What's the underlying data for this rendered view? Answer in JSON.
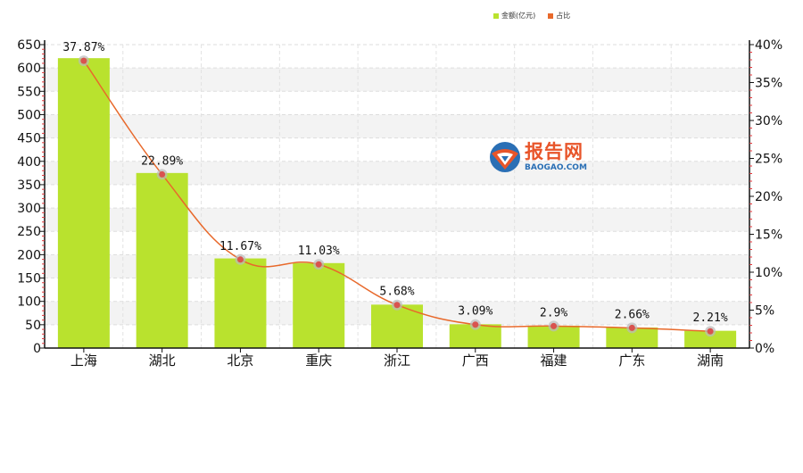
{
  "chart_data": {
    "type": "bar",
    "categories": [
      "上海",
      "湖北",
      "北京",
      "重庆",
      "浙江",
      "广西",
      "福建",
      "广东",
      "湖南"
    ],
    "series": [
      {
        "name": "金额(亿元)",
        "type": "bar",
        "axis": "left",
        "color": "#b9e22e",
        "values": [
          621,
          375,
          192,
          182,
          93,
          51,
          48,
          44,
          37
        ]
      },
      {
        "name": "占比",
        "type": "line",
        "axis": "right",
        "color": "#e8692b",
        "values": [
          37.87,
          22.89,
          11.67,
          11.03,
          5.68,
          3.09,
          2.9,
          2.66,
          2.21
        ],
        "labels": [
          "37.87%",
          "22.89%",
          "11.67%",
          "11.03%",
          "5.68%",
          "3.09%",
          "2.9%",
          "2.66%",
          "2.21%"
        ]
      }
    ],
    "y_left": {
      "min": 0,
      "max": 650,
      "ticks": [
        "0",
        "50",
        "100",
        "150",
        "200",
        "250",
        "300",
        "350",
        "400",
        "450",
        "500",
        "550",
        "600",
        "650"
      ]
    },
    "y_right": {
      "min": 0,
      "max": 40,
      "ticks": [
        "0%",
        "5%",
        "10%",
        "15%",
        "20%",
        "25%",
        "30%",
        "35%",
        "40%"
      ]
    },
    "grid": true,
    "legend_position": "top-right"
  },
  "legend": {
    "bar_label": "金额(亿元)",
    "line_label": "占比"
  },
  "watermark": {
    "cn": "报告网",
    "en": "BAOGAO.COM"
  }
}
